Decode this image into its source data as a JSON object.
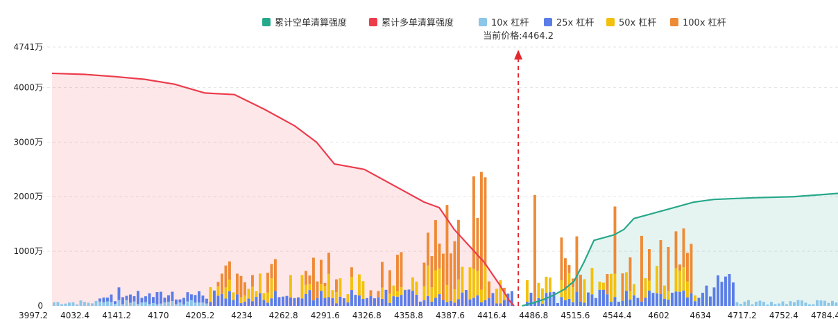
{
  "chart_data": {
    "type": "bar",
    "legend": [
      {
        "key": "short_cum",
        "label": "累计空单清算强度",
        "color": "#26a88a"
      },
      {
        "key": "long_cum",
        "label": "累计多单清算强度",
        "color": "#ec3b4b"
      },
      {
        "key": "lev10",
        "label": "10x 杠杆",
        "color": "#8cc6ea"
      },
      {
        "key": "lev25",
        "label": "25x 杠杆",
        "color": "#5b7de8"
      },
      {
        "key": "lev50",
        "label": "50x 杠杆",
        "color": "#f3c10d"
      },
      {
        "key": "lev100",
        "label": "100x 杠杆",
        "color": "#ee8a36"
      }
    ],
    "current_price_label": "当前价格:4464.2",
    "current_price": 4464.2,
    "legend_position": "top-center",
    "grid": true,
    "y_axis": {
      "ylim": [
        0,
        4741
      ],
      "ticks": [
        {
          "value": 0,
          "label": "0"
        },
        {
          "value": 1000,
          "label": "1000万"
        },
        {
          "value": 2000,
          "label": "2000万"
        },
        {
          "value": 3000,
          "label": "3000万"
        },
        {
          "value": 4000,
          "label": "4000万"
        },
        {
          "value": 4741,
          "label": "4741万"
        }
      ]
    },
    "x_axis": {
      "xlim": [
        3997.2,
        4784.4
      ],
      "tick_labels": [
        "3997.2",
        "4032.4",
        "4141.2",
        "4170",
        "4205.2",
        "4234",
        "4262.8",
        "4291.6",
        "4326.8",
        "4358.8",
        "4387.6",
        "4416.4",
        "4486.8",
        "4515.6",
        "4544.4",
        "4602",
        "4634",
        "4717.2",
        "4752.4",
        "4784.4"
      ]
    },
    "series": [
      {
        "name": "累计多单清算强度",
        "key": "long_cum",
        "type": "area",
        "x": [
          3997.2,
          4030,
          4060,
          4090,
          4120,
          4150,
          4180,
          4210,
          4240,
          4262,
          4280,
          4295,
          4310,
          4330,
          4350,
          4370,
          4385,
          4400,
          4415,
          4430,
          4445,
          4455,
          4460
        ],
        "y": [
          4260,
          4240,
          4200,
          4150,
          4060,
          3900,
          3870,
          3600,
          3300,
          3000,
          2600,
          2550,
          2500,
          2300,
          2100,
          1900,
          1800,
          1400,
          1100,
          800,
          400,
          100,
          0
        ]
      },
      {
        "name": "累计空单清算强度",
        "key": "short_cum",
        "type": "area",
        "x": [
          4468,
          4480,
          4490,
          4500,
          4510,
          4520,
          4530,
          4540,
          4550,
          4560,
          4570,
          4580,
          4600,
          4620,
          4640,
          4660,
          4700,
          4740,
          4784.4
        ],
        "y": [
          0,
          60,
          120,
          200,
          300,
          450,
          800,
          1200,
          1250,
          1300,
          1400,
          1600,
          1700,
          1800,
          1900,
          1950,
          1980,
          2000,
          2060
        ]
      }
    ]
  }
}
